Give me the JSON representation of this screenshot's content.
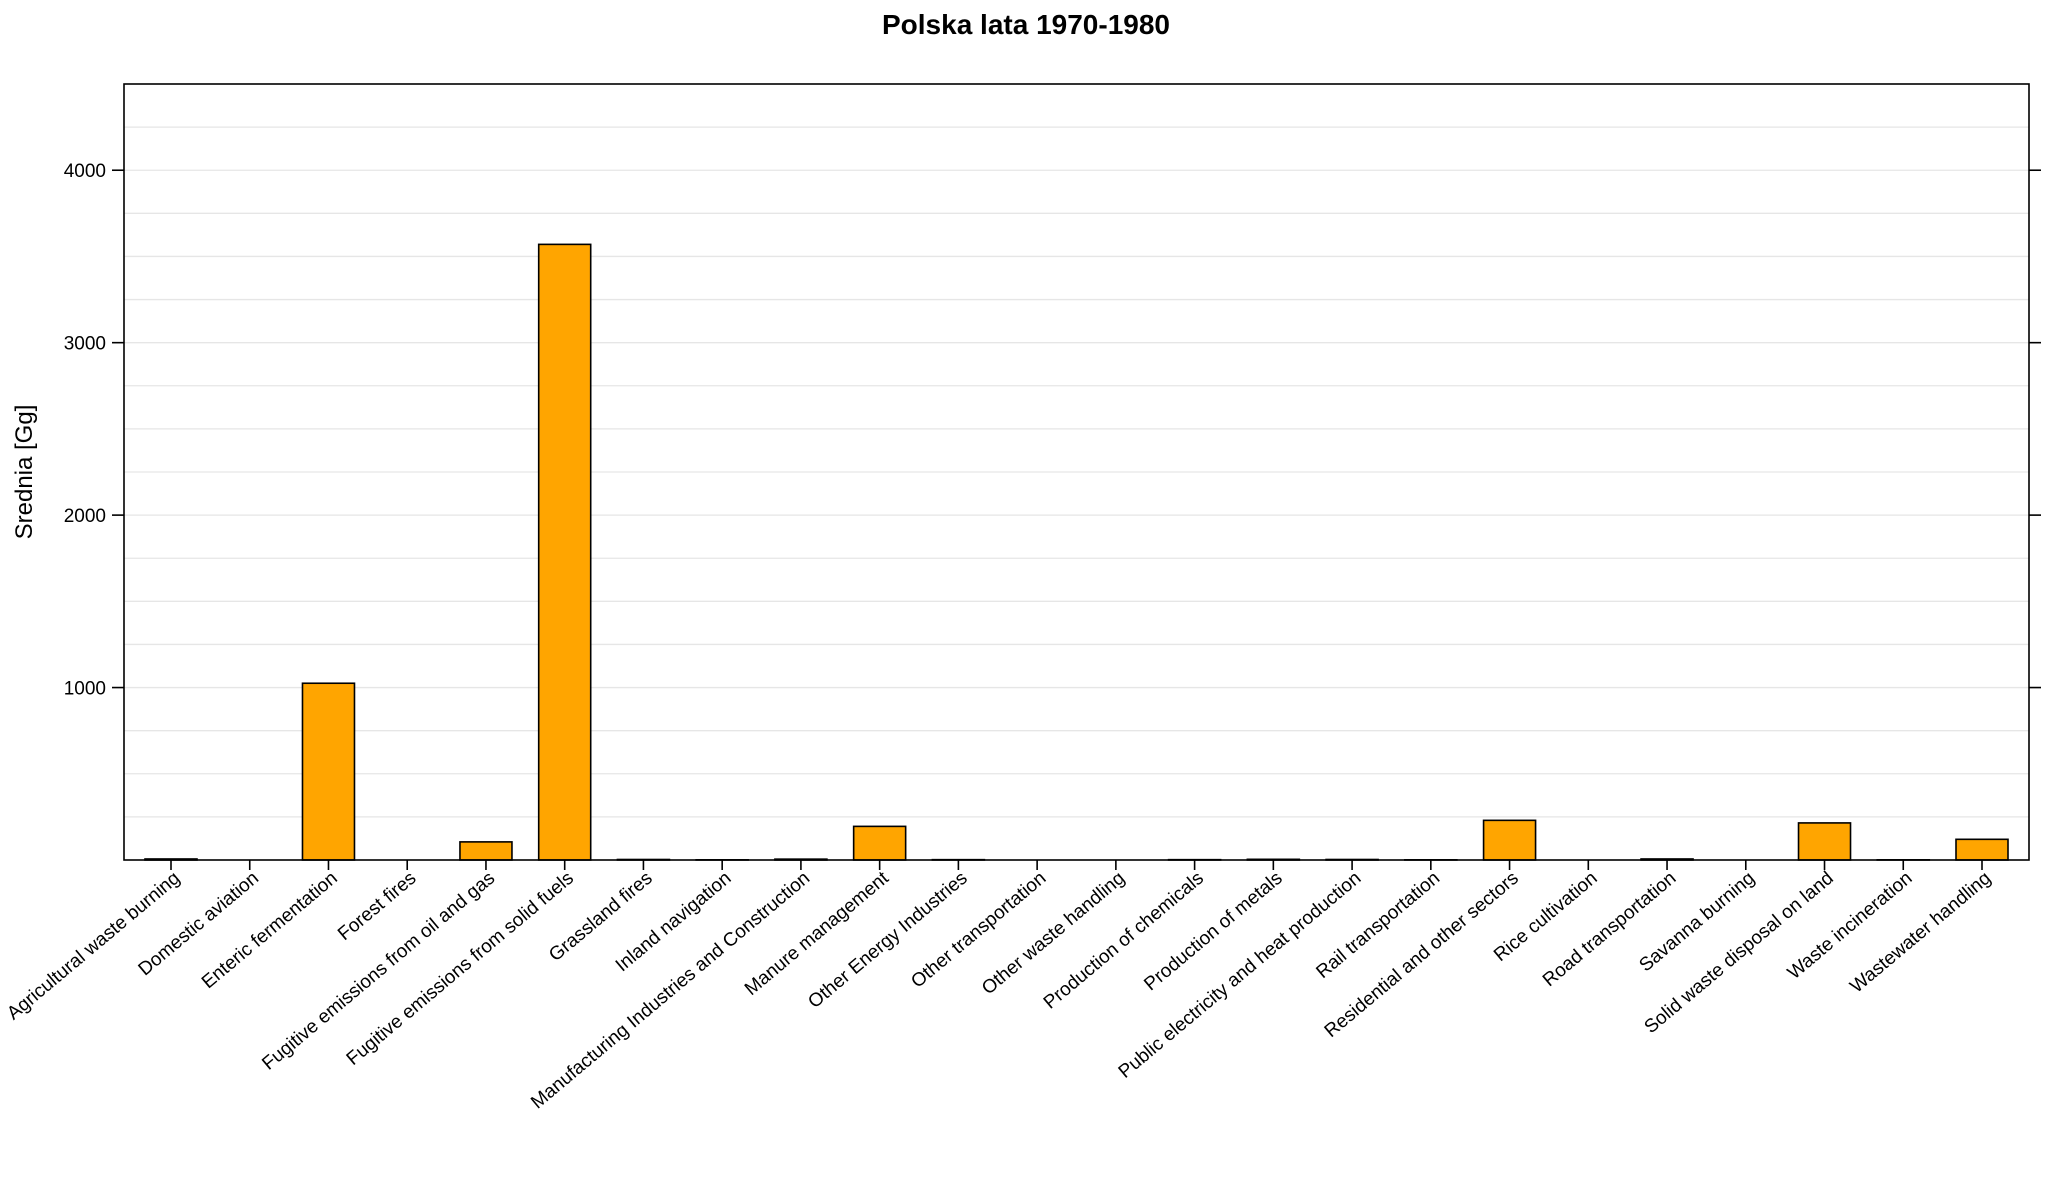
{
  "chart_data": {
    "type": "bar",
    "title": "Polska lata 1970-1980",
    "xlabel": "",
    "ylabel": "Srednia [Gg]",
    "ylim": [
      0,
      4500
    ],
    "yticks": [
      1000,
      2000,
      3000,
      4000
    ],
    "grid": true,
    "bar_color": "#FFA500",
    "categories": [
      "Agricultural waste burning",
      "Domestic aviation",
      "Enteric fermentation",
      "Forest fires",
      "Fugitive emissions from oil and gas",
      "Fugitive emissions from solid fuels",
      "Grassland fires",
      "Inland navigation",
      "Manufacturing Industries and Construction",
      "Manure management",
      "Other Energy Industries",
      "Other transportation",
      "Other waste handling",
      "Production of chemicals",
      "Production of metals",
      "Public electricity and heat production",
      "Rail transportation",
      "Residential and other sectors",
      "Rice cultivation",
      "Road transportation",
      "Savanna burning",
      "Solid waste disposal on land",
      "Waste incineration",
      "Wastewater handling"
    ],
    "values": [
      6,
      0,
      1025,
      0,
      105,
      3570,
      3,
      1,
      5,
      195,
      2,
      0,
      0,
      2,
      4,
      3,
      1,
      230,
      0,
      6,
      0,
      215,
      1,
      120
    ]
  }
}
